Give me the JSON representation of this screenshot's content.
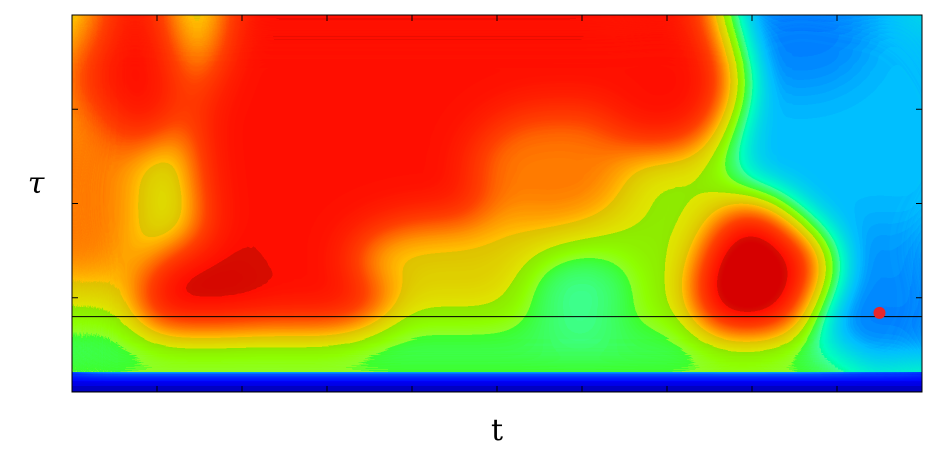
{
  "chart_data": {
    "type": "heatmap",
    "title": "",
    "xlabel": "t",
    "ylabel": "τ",
    "colormap": "jet",
    "colormap_colors": [
      "#00008f",
      "#0040ff",
      "#00bfff",
      "#40ffbf",
      "#bfff40",
      "#ffbf00",
      "#ff4000",
      "#8f0000"
    ],
    "xlim": [
      0,
      1
    ],
    "ylim": [
      0,
      1
    ],
    "x_tick_count": 10,
    "y_tick_count": 4,
    "tick_labels_shown": false,
    "reference_line": {
      "y": 0.2
    },
    "marker": {
      "x": 0.95,
      "y": 0.21,
      "color": "#e8262b"
    }
  }
}
